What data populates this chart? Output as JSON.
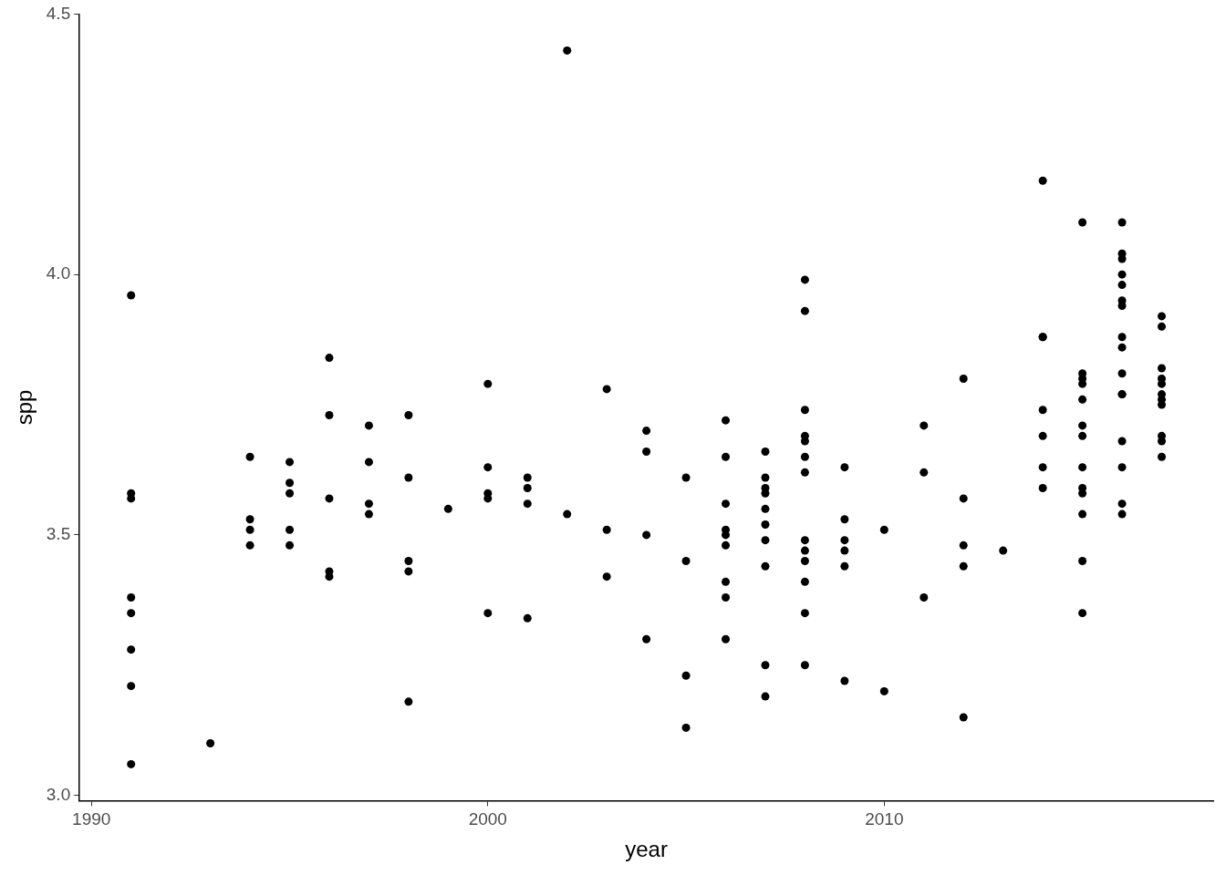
{
  "chart_data": {
    "type": "scatter",
    "xlabel": "year",
    "ylabel": "spp",
    "xlim": [
      1989.7,
      2018.3
    ],
    "xticks": [
      1990,
      2000,
      2010
    ],
    "ylim": [
      2.99,
      4.5
    ],
    "yticks": [
      {
        "value": 3,
        "label": "3.0"
      },
      3.5,
      {
        "value": 4,
        "label": "4.0"
      },
      4.5
    ],
    "grid": false,
    "legend": false,
    "marker": "circle",
    "series": [
      {
        "color": "#000000",
        "x": [
          1991,
          1991,
          1991,
          1991,
          1991,
          1991,
          1991,
          1991,
          1993,
          1994,
          1994,
          1994,
          1994,
          1995,
          1995,
          1995,
          1995,
          1995,
          1996,
          1996,
          1996,
          1996,
          1996,
          1997,
          1997,
          1997,
          1997,
          1998,
          1998,
          1998,
          1998,
          1998,
          1999,
          2000,
          2000,
          2000,
          2000,
          2000,
          2001,
          2001,
          2001,
          2001,
          2002,
          2002,
          2003,
          2003,
          2003,
          2004,
          2004,
          2004,
          2004,
          2005,
          2005,
          2005,
          2005,
          2006,
          2006,
          2006,
          2006,
          2006,
          2006,
          2006,
          2006,
          2006,
          2007,
          2007,
          2007,
          2007,
          2007,
          2007,
          2007,
          2007,
          2007,
          2007,
          2008,
          2008,
          2008,
          2008,
          2008,
          2008,
          2008,
          2008,
          2008,
          2008,
          2008,
          2008,
          2008,
          2009,
          2009,
          2009,
          2009,
          2009,
          2009,
          2010,
          2010,
          2011,
          2011,
          2011,
          2012,
          2012,
          2012,
          2012,
          2012,
          2013,
          2014,
          2014,
          2014,
          2014,
          2014,
          2014,
          2014,
          2015,
          2015,
          2015,
          2015,
          2015,
          2015,
          2015,
          2015,
          2015,
          2015,
          2015,
          2015,
          2015,
          2016,
          2016,
          2016,
          2016,
          2016,
          2016,
          2016,
          2016,
          2016,
          2016,
          2016,
          2016,
          2016,
          2016,
          2016,
          2016,
          2017,
          2017,
          2017,
          2017,
          2017,
          2017,
          2017,
          2017,
          2017,
          2017,
          2017
        ],
        "values": [
          3.96,
          3.58,
          3.57,
          3.38,
          3.35,
          3.28,
          3.21,
          3.06,
          3.1,
          3.65,
          3.53,
          3.51,
          3.48,
          3.64,
          3.6,
          3.58,
          3.51,
          3.48,
          3.84,
          3.73,
          3.57,
          3.43,
          3.42,
          3.71,
          3.64,
          3.56,
          3.54,
          3.73,
          3.61,
          3.45,
          3.43,
          3.18,
          3.55,
          3.79,
          3.63,
          3.58,
          3.57,
          3.35,
          3.61,
          3.59,
          3.56,
          3.34,
          4.43,
          3.54,
          3.78,
          3.51,
          3.42,
          3.7,
          3.66,
          3.5,
          3.3,
          3.61,
          3.45,
          3.23,
          3.13,
          3.72,
          3.65,
          3.56,
          3.51,
          3.5,
          3.48,
          3.41,
          3.38,
          3.3,
          3.66,
          3.61,
          3.59,
          3.58,
          3.55,
          3.52,
          3.49,
          3.44,
          3.25,
          3.19,
          3.99,
          3.93,
          3.74,
          3.69,
          3.68,
          3.65,
          3.62,
          3.49,
          3.47,
          3.45,
          3.41,
          3.35,
          3.25,
          3.63,
          3.53,
          3.49,
          3.47,
          3.44,
          3.22,
          3.51,
          3.2,
          3.71,
          3.62,
          3.38,
          3.8,
          3.57,
          3.48,
          3.44,
          3.15,
          3.47,
          4.18,
          3.88,
          3.88,
          3.74,
          3.69,
          3.63,
          3.59,
          4.1,
          3.81,
          3.8,
          3.79,
          3.76,
          3.71,
          3.69,
          3.63,
          3.59,
          3.58,
          3.54,
          3.45,
          3.35,
          4.1,
          4.04,
          4.03,
          4.0,
          3.98,
          3.95,
          3.94,
          3.88,
          3.86,
          3.81,
          3.77,
          3.77,
          3.68,
          3.63,
          3.56,
          3.54,
          3.92,
          3.9,
          3.82,
          3.8,
          3.79,
          3.77,
          3.76,
          3.75,
          3.69,
          3.68,
          3.65
        ]
      }
    ]
  }
}
